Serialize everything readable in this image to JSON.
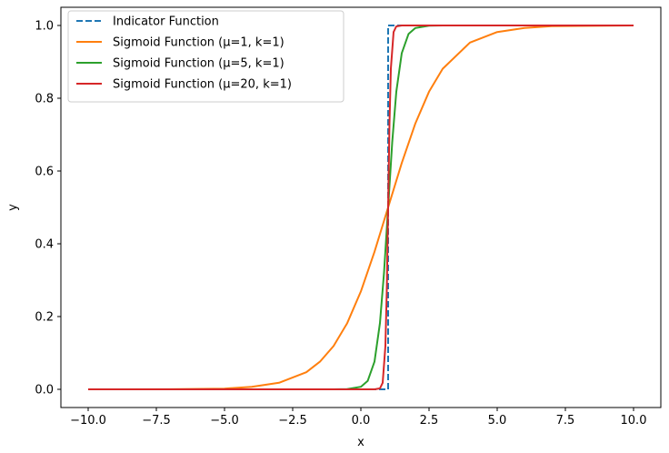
{
  "chart_data": {
    "type": "line",
    "title": "",
    "xlabel": "x",
    "ylabel": "y",
    "xlim": [
      -11.0,
      11.0
    ],
    "ylim": [
      -0.05,
      1.05
    ],
    "x_ticks": [
      "−10.0",
      "−7.5",
      "−5.0",
      "−2.5",
      "0.0",
      "2.5",
      "5.0",
      "7.5",
      "10.0"
    ],
    "x_tick_values": [
      -10,
      -7.5,
      -5,
      -2.5,
      0,
      2.5,
      5,
      7.5,
      10
    ],
    "y_ticks": [
      "0.0",
      "0.2",
      "0.4",
      "0.6",
      "0.8",
      "1.0"
    ],
    "y_tick_values": [
      0,
      0.2,
      0.4,
      0.6,
      0.8,
      1.0
    ],
    "grid": false,
    "legend_position": "upper-left",
    "series": [
      {
        "name": "Indicator Function",
        "color": "#1f77b4",
        "style": "dashed",
        "x": [
          -10,
          1,
          1,
          10
        ],
        "y": [
          0,
          0,
          1,
          1
        ]
      },
      {
        "name": "Sigmoid Function (μ=1, k=1)",
        "color": "#ff7f0e",
        "style": "solid",
        "x": [
          -10,
          -7,
          -5,
          -4,
          -3,
          -2,
          -1.5,
          -1,
          -0.5,
          0,
          0.5,
          1,
          1.5,
          2,
          2.5,
          3,
          4,
          5,
          6,
          7,
          10
        ],
        "y": [
          0.0,
          0.0003,
          0.002,
          0.007,
          0.018,
          0.047,
          0.076,
          0.119,
          0.182,
          0.269,
          0.378,
          0.5,
          0.622,
          0.731,
          0.818,
          0.881,
          0.953,
          0.982,
          0.993,
          0.998,
          1.0
        ]
      },
      {
        "name": "Sigmoid Function (μ=5, k=1)",
        "color": "#2ca02c",
        "style": "solid",
        "x": [
          -10,
          -1,
          -0.5,
          0,
          0.25,
          0.5,
          0.7,
          0.85,
          1,
          1.15,
          1.3,
          1.5,
          1.75,
          2,
          2.5,
          3,
          10
        ],
        "y": [
          0.0,
          5e-05,
          0.0006,
          0.007,
          0.023,
          0.076,
          0.182,
          0.321,
          0.5,
          0.679,
          0.818,
          0.924,
          0.977,
          0.993,
          0.9994,
          1.0,
          1.0
        ]
      },
      {
        "name": "Sigmoid Function (μ=20, k=1)",
        "color": "#d62728",
        "style": "solid",
        "x": [
          -10,
          0.5,
          0.7,
          0.8,
          0.9,
          0.95,
          1,
          1.05,
          1.1,
          1.2,
          1.3,
          1.5,
          10
        ],
        "y": [
          0.0,
          5e-05,
          0.0025,
          0.018,
          0.119,
          0.269,
          0.5,
          0.731,
          0.881,
          0.982,
          0.9975,
          0.99995,
          1.0
        ]
      }
    ]
  }
}
